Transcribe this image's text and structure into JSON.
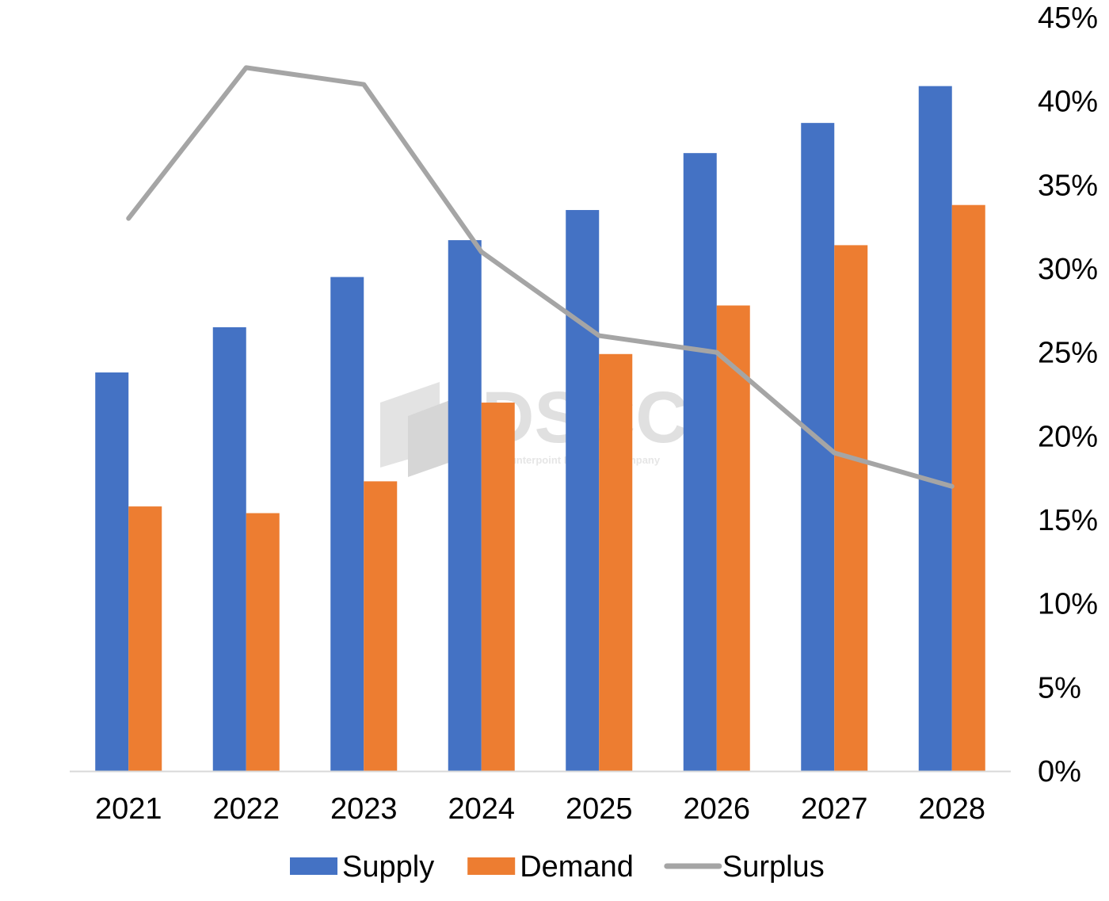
{
  "chart_data": {
    "type": "bar",
    "categories": [
      "2021",
      "2022",
      "2023",
      "2024",
      "2025",
      "2026",
      "2027",
      "2028"
    ],
    "series": [
      {
        "name": "Supply",
        "kind": "bar",
        "axis": "left",
        "color": "#4472C4",
        "values": [
          2.38,
          2.65,
          2.95,
          3.17,
          3.35,
          3.69,
          3.87,
          4.09
        ]
      },
      {
        "name": "Demand",
        "kind": "bar",
        "axis": "left",
        "color": "#ED7D31",
        "values": [
          1.58,
          1.54,
          1.73,
          2.2,
          2.49,
          2.78,
          3.14,
          3.38
        ]
      },
      {
        "name": "Surplus",
        "kind": "line",
        "axis": "right",
        "color": "#A5A5A5",
        "values": [
          0.33,
          0.42,
          0.41,
          0.31,
          0.26,
          0.25,
          0.19,
          0.17
        ]
      }
    ],
    "y_right": {
      "ylim": [
        0,
        0.45
      ],
      "ticks": [
        0,
        0.05,
        0.1,
        0.15,
        0.2,
        0.25,
        0.3,
        0.35,
        0.4,
        0.45
      ],
      "tick_labels": [
        "0%",
        "5%",
        "10%",
        "15%",
        "20%",
        "25%",
        "30%",
        "35%",
        "40%",
        "45%"
      ]
    },
    "y_left": {
      "ylim": [
        0,
        4.5
      ],
      "visible": false
    },
    "legend": {
      "position": "bottom",
      "items": [
        "Supply",
        "Demand",
        "Surplus"
      ]
    },
    "grid": false,
    "title": "",
    "xlabel": "",
    "ylabel": ""
  },
  "watermark": {
    "word": "DSCC",
    "tagline": "A Counterpoint Research Company"
  }
}
